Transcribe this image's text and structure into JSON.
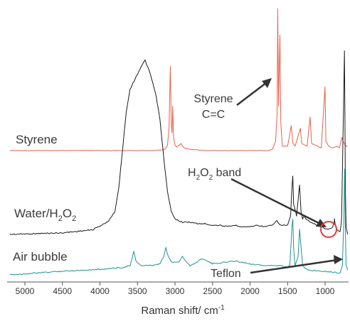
{
  "chart_data": {
    "type": "line",
    "title": "",
    "xlabel": "Raman shift/ cm",
    "xlabel_sup": "-1",
    "ylabel": "",
    "xlim": [
      5200,
      700
    ],
    "x_reversed": true,
    "grid": false,
    "y_axis_visible": false,
    "x_ticks": [
      5000,
      4500,
      4000,
      3500,
      3000,
      2500,
      2000,
      1500,
      1000
    ],
    "series": [
      {
        "name": "Styrene",
        "color": "#e8604c",
        "baseline": 0.0,
        "points": [
          [
            5200,
            0.0
          ],
          [
            3300,
            0.0
          ],
          [
            3150,
            0.01
          ],
          [
            3120,
            0.03
          ],
          [
            3100,
            0.06
          ],
          [
            3080,
            0.25
          ],
          [
            3062,
            0.95
          ],
          [
            3050,
            0.3
          ],
          [
            3040,
            0.2
          ],
          [
            3030,
            0.5
          ],
          [
            3020,
            0.15
          ],
          [
            3000,
            0.06
          ],
          [
            2980,
            0.04
          ],
          [
            2920,
            0.08
          ],
          [
            2900,
            0.05
          ],
          [
            2860,
            0.02
          ],
          [
            2600,
            0.0
          ],
          [
            1750,
            0.0
          ],
          [
            1700,
            0.02
          ],
          [
            1660,
            0.1
          ],
          [
            1640,
            0.4
          ],
          [
            1631,
            1.6
          ],
          [
            1620,
            0.5
          ],
          [
            1602,
            1.3
          ],
          [
            1590,
            0.3
          ],
          [
            1570,
            0.05
          ],
          [
            1500,
            0.05
          ],
          [
            1450,
            0.28
          ],
          [
            1430,
            0.08
          ],
          [
            1400,
            0.05
          ],
          [
            1330,
            0.25
          ],
          [
            1310,
            0.08
          ],
          [
            1240,
            0.05
          ],
          [
            1200,
            0.38
          ],
          [
            1180,
            0.08
          ],
          [
            1100,
            0.05
          ],
          [
            1050,
            0.03
          ],
          [
            1001,
            0.72
          ],
          [
            990,
            0.1
          ],
          [
            950,
            0.05
          ],
          [
            900,
            0.03
          ],
          [
            840,
            0.05
          ],
          [
            810,
            0.03
          ],
          [
            775,
            0.15
          ],
          [
            760,
            0.1
          ],
          [
            720,
            0.05
          ],
          [
            700,
            0.05
          ]
        ]
      },
      {
        "name": "Water/H2O2",
        "color": "#1a1a1a",
        "baseline": 0.0,
        "points": [
          [
            5200,
            0.0
          ],
          [
            4500,
            0.01
          ],
          [
            4100,
            0.03
          ],
          [
            3900,
            0.08
          ],
          [
            3800,
            0.15
          ],
          [
            3750,
            0.3
          ],
          [
            3700,
            0.55
          ],
          [
            3650,
            0.8
          ],
          [
            3600,
            0.95
          ],
          [
            3550,
            1.0
          ],
          [
            3500,
            1.05
          ],
          [
            3450,
            1.1
          ],
          [
            3400,
            1.14
          ],
          [
            3350,
            1.08
          ],
          [
            3300,
            1.0
          ],
          [
            3250,
            0.9
          ],
          [
            3200,
            0.75
          ],
          [
            3150,
            0.5
          ],
          [
            3100,
            0.28
          ],
          [
            3050,
            0.15
          ],
          [
            3000,
            0.1
          ],
          [
            2900,
            0.08
          ],
          [
            2800,
            0.08
          ],
          [
            2700,
            0.07
          ],
          [
            2600,
            0.07
          ],
          [
            2500,
            0.06
          ],
          [
            2400,
            0.06
          ],
          [
            2300,
            0.05
          ],
          [
            2200,
            0.06
          ],
          [
            2100,
            0.05
          ],
          [
            2000,
            0.05
          ],
          [
            1900,
            0.06
          ],
          [
            1800,
            0.05
          ],
          [
            1700,
            0.06
          ],
          [
            1640,
            0.09
          ],
          [
            1600,
            0.06
          ],
          [
            1500,
            0.06
          ],
          [
            1460,
            0.12
          ],
          [
            1440,
            0.32
          ],
          [
            1430,
            0.38
          ],
          [
            1420,
            0.2
          ],
          [
            1380,
            0.12
          ],
          [
            1350,
            0.28
          ],
          [
            1340,
            0.32
          ],
          [
            1320,
            0.15
          ],
          [
            1300,
            0.1
          ],
          [
            1280,
            0.12
          ],
          [
            1250,
            0.1
          ],
          [
            1200,
            0.08
          ],
          [
            1100,
            0.06
          ],
          [
            1000,
            0.04
          ],
          [
            960,
            0.03
          ],
          [
            900,
            0.05
          ],
          [
            880,
            0.08
          ],
          [
            876,
            0.1
          ],
          [
            870,
            0.08
          ],
          [
            850,
            0.03
          ],
          [
            800,
            0.02
          ],
          [
            780,
            0.1
          ],
          [
            742,
            1.2
          ],
          [
            730,
            0.3
          ],
          [
            720,
            0.05
          ],
          [
            700,
            0.0
          ]
        ]
      },
      {
        "name": "Air bubble",
        "color": "#1f9494",
        "baseline": 0.0,
        "points": [
          [
            5200,
            0.0
          ],
          [
            4500,
            0.04
          ],
          [
            4000,
            0.06
          ],
          [
            3700,
            0.08
          ],
          [
            3600,
            0.1
          ],
          [
            3570,
            0.18
          ],
          [
            3550,
            0.25
          ],
          [
            3520,
            0.15
          ],
          [
            3450,
            0.1
          ],
          [
            3300,
            0.1
          ],
          [
            3200,
            0.12
          ],
          [
            3150,
            0.2
          ],
          [
            3120,
            0.3
          ],
          [
            3100,
            0.22
          ],
          [
            3050,
            0.14
          ],
          [
            2950,
            0.14
          ],
          [
            2900,
            0.2
          ],
          [
            2860,
            0.15
          ],
          [
            2800,
            0.1
          ],
          [
            2700,
            0.14
          ],
          [
            2650,
            0.18
          ],
          [
            2600,
            0.16
          ],
          [
            2500,
            0.12
          ],
          [
            2300,
            0.14
          ],
          [
            2200,
            0.15
          ],
          [
            2000,
            0.12
          ],
          [
            1800,
            0.1
          ],
          [
            1600,
            0.1
          ],
          [
            1500,
            0.08
          ],
          [
            1470,
            0.1
          ],
          [
            1440,
            0.55
          ],
          [
            1430,
            0.6
          ],
          [
            1420,
            0.3
          ],
          [
            1400,
            0.1
          ],
          [
            1360,
            0.2
          ],
          [
            1340,
            0.5
          ],
          [
            1320,
            0.3
          ],
          [
            1300,
            0.1
          ],
          [
            1250,
            0.06
          ],
          [
            1200,
            0.05
          ],
          [
            1000,
            0.04
          ],
          [
            900,
            0.03
          ],
          [
            800,
            0.02
          ],
          [
            770,
            0.1
          ],
          [
            750,
            0.6
          ],
          [
            740,
            1.15
          ],
          [
            730,
            0.5
          ],
          [
            720,
            0.1
          ],
          [
            700,
            0.05
          ]
        ]
      }
    ],
    "labels": {
      "styrene": "Styrene",
      "water_prefix": "Water/H",
      "water_sub1": "2",
      "water_o": "O",
      "water_sub2": "2",
      "air": "Air bubble",
      "styrene_cc_1": "Styrene",
      "styrene_cc_2": "C=C",
      "h2o2_h": "H",
      "h2o2_sub1": "2",
      "h2o2_o": "O",
      "h2o2_sub2": "2",
      "h2o2_band": " band",
      "teflon": "Teflon"
    },
    "annotation_color": "#333333",
    "highlight_color": "#e53935"
  }
}
